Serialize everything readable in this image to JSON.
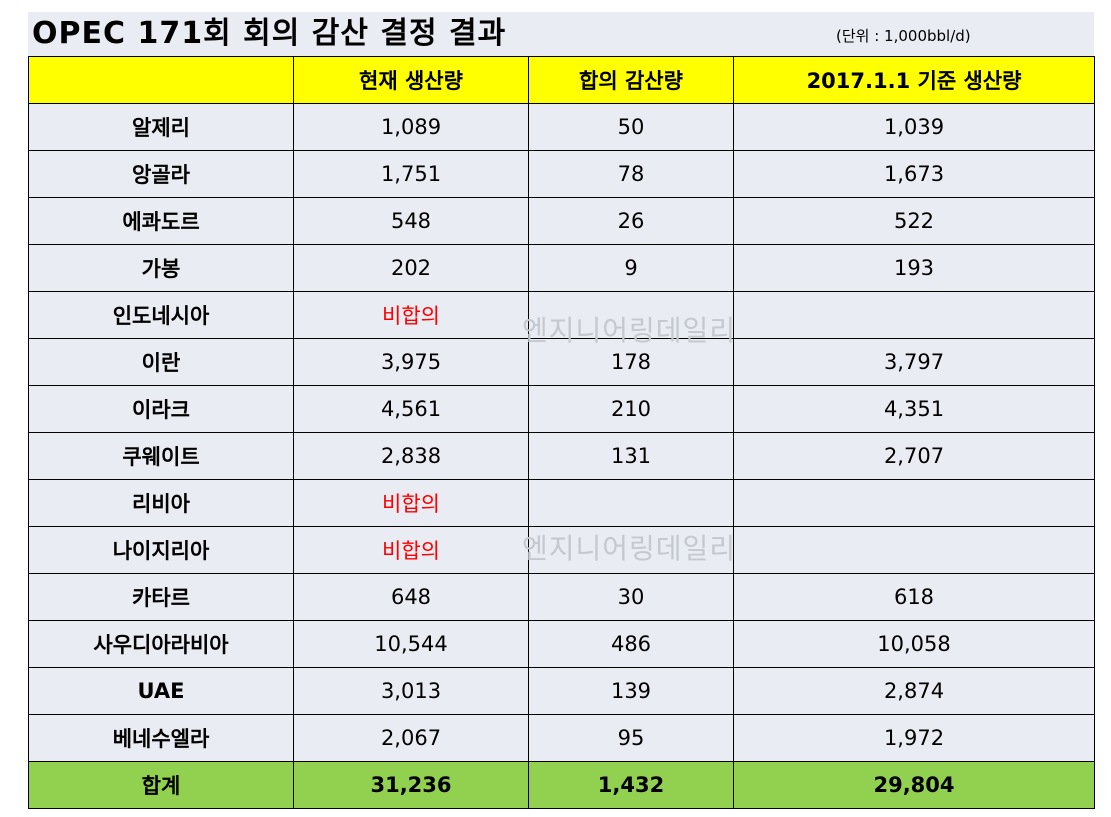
{
  "title": "OPEC  171회 회의 감산 결정 결과",
  "unit": "(단위 : 1,000bbl/d)",
  "columns": [
    "",
    "현재 생산량",
    "합의 감산량",
    "2017.1.1 기준 생산량"
  ],
  "rows": [
    {
      "country": "알제리",
      "current": "1,089",
      "cut": "50",
      "target": "1,039"
    },
    {
      "country": "앙골라",
      "current": "1,751",
      "cut": "78",
      "target": "1,673"
    },
    {
      "country": "에콰도르",
      "current": "548",
      "cut": "26",
      "target": "522"
    },
    {
      "country": "가봉",
      "current": "202",
      "cut": "9",
      "target": "193"
    },
    {
      "country": "인도네시아",
      "current": "비합의",
      "cut": "",
      "target": ""
    },
    {
      "country": "이란",
      "current": "3,975",
      "cut": "178",
      "target": "3,797"
    },
    {
      "country": "이라크",
      "current": "4,561",
      "cut": "210",
      "target": "4,351"
    },
    {
      "country": "쿠웨이트",
      "current": "2,838",
      "cut": "131",
      "target": "2,707"
    },
    {
      "country": "리비아",
      "current": "비합의",
      "cut": "",
      "target": ""
    },
    {
      "country": "나이지리아",
      "current": "비합의",
      "cut": "",
      "target": ""
    },
    {
      "country": "카타르",
      "current": "648",
      "cut": "30",
      "target": "618"
    },
    {
      "country": "사우디아라비아",
      "current": "10,544",
      "cut": "486",
      "target": "10,058"
    },
    {
      "country": "UAE",
      "current": "3,013",
      "cut": "139",
      "target": "2,874"
    },
    {
      "country": "베네수엘라",
      "current": "2,067",
      "cut": "95",
      "target": "1,972"
    }
  ],
  "total": {
    "label": "합계",
    "current": "31,236",
    "cut": "1,432",
    "target": "29,804"
  },
  "watermarks": [
    "엔지니어링데일리",
    "엔지니어링데일리"
  ],
  "colors": {
    "header": "#ffff00",
    "total": "#92d050",
    "body": "#e9ecf2",
    "non_agreement": "#ff0000"
  }
}
